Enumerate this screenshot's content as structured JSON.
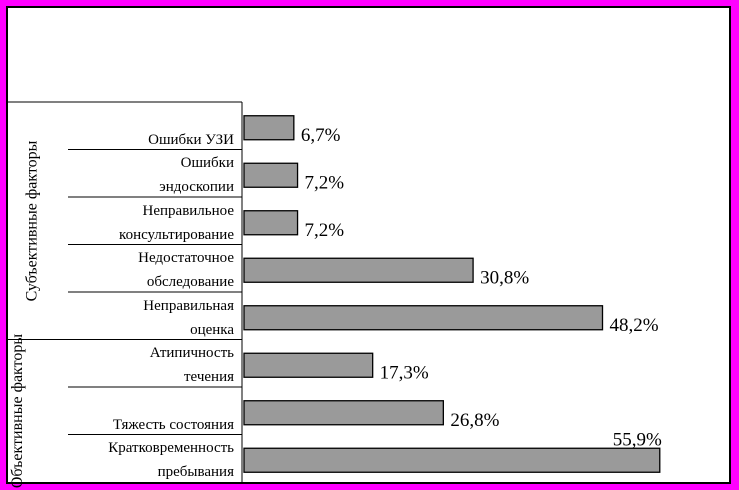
{
  "colors": {
    "page_border": "#ff00ff",
    "bar_fill": "#9a9a9a",
    "bar_stroke": "#000000",
    "background": "#ffffff"
  },
  "chart_data": {
    "type": "bar",
    "orientation": "horizontal",
    "title": "",
    "xlabel": "",
    "ylabel": "",
    "xlim": [
      0,
      100
    ],
    "categories": [
      "Ошибки УЗИ",
      "Ошибки эндоскопии",
      "Неправильное консультирование",
      "Недостаточное обследование",
      "Неправильная оценка",
      "Атипичность течения",
      "Тяжесть состояния",
      "Кратковременность пребывания"
    ],
    "category_lines": [
      [
        "Ошибки УЗИ"
      ],
      [
        "Ошибки",
        "эндоскопии"
      ],
      [
        "Неправильное",
        "консультирование"
      ],
      [
        "Недостаточное",
        "обследование"
      ],
      [
        "Неправильная",
        "оценка"
      ],
      [
        "Атипичность",
        "течения"
      ],
      [
        "Тяжесть состояния"
      ],
      [
        "Кратковременность",
        "пребывания"
      ]
    ],
    "values": [
      6.7,
      7.2,
      7.2,
      30.8,
      48.2,
      17.3,
      26.8,
      55.9
    ],
    "value_labels": [
      "6,7%",
      "7,2%",
      "7,2%",
      "30,8%",
      "48,2%",
      "17,3%",
      "26,8%",
      "55,9%"
    ],
    "groups": [
      {
        "label": "Субъективные факторы",
        "from": 0,
        "to": 4
      },
      {
        "label": "Объективные факторы",
        "from": 5,
        "to": 7
      }
    ],
    "grid": false,
    "legend": "none"
  }
}
